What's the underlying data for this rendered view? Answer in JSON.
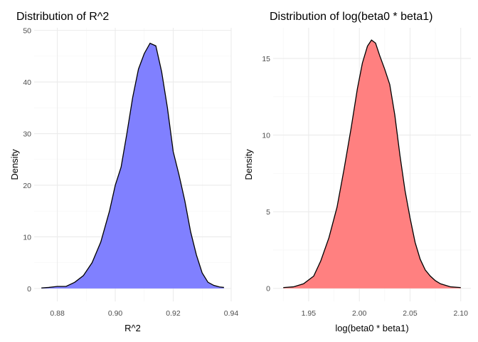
{
  "chart_data": [
    {
      "type": "area",
      "title": "Distribution of R^2",
      "xlabel": "R^2",
      "ylabel": "Density",
      "fill_color": "#8080ff",
      "line_color": "#000000",
      "grid": true,
      "xlim": [
        0.872,
        0.94
      ],
      "ylim": [
        -2.5,
        50.5
      ],
      "x_ticks": [
        0.88,
        0.9,
        0.92,
        0.94
      ],
      "x_tick_labels": [
        "0.88",
        "0.90",
        "0.92",
        "0.94"
      ],
      "y_ticks": [
        0,
        10,
        20,
        30,
        40,
        50
      ],
      "y_tick_labels": [
        "0",
        "10",
        "20",
        "30",
        "40",
        "50"
      ],
      "x": [
        0.8745,
        0.877,
        0.88,
        0.883,
        0.886,
        0.889,
        0.892,
        0.895,
        0.898,
        0.9,
        0.902,
        0.904,
        0.906,
        0.908,
        0.91,
        0.912,
        0.914,
        0.916,
        0.918,
        0.92,
        0.922,
        0.924,
        0.926,
        0.928,
        0.93,
        0.932,
        0.934,
        0.936,
        0.9375
      ],
      "y": [
        0.1,
        0.2,
        0.4,
        0.4,
        1.2,
        2.5,
        5.0,
        9.0,
        15.0,
        20.0,
        23.5,
        30.0,
        37.0,
        42.5,
        45.5,
        47.5,
        47.0,
        42.0,
        35.0,
        26.5,
        22.0,
        17.0,
        11.0,
        6.5,
        3.0,
        1.2,
        0.6,
        0.3,
        0.2
      ]
    },
    {
      "type": "area",
      "title": "Distribution of log(beta0 * beta1)",
      "xlabel": "log(beta0 * beta1)",
      "ylabel": "Density",
      "fill_color": "#ff8080",
      "line_color": "#000000",
      "grid": true,
      "xlim": [
        1.915,
        2.11
      ],
      "ylim": [
        -0.85,
        17.0
      ],
      "x_ticks": [
        1.95,
        2.0,
        2.05,
        2.1
      ],
      "x_tick_labels": [
        "1.95",
        "2.00",
        "2.05",
        "2.10"
      ],
      "y_ticks": [
        0,
        5,
        10,
        15
      ],
      "y_tick_labels": [
        "0",
        "5",
        "10",
        "15"
      ],
      "x": [
        1.925,
        1.935,
        1.945,
        1.955,
        1.962,
        1.97,
        1.978,
        1.985,
        1.992,
        1.998,
        2.003,
        2.008,
        2.012,
        2.016,
        2.02,
        2.025,
        2.03,
        2.035,
        2.04,
        2.045,
        2.05,
        2.055,
        2.06,
        2.065,
        2.07,
        2.075,
        2.08,
        2.09,
        2.1
      ],
      "y": [
        0.05,
        0.1,
        0.3,
        0.8,
        1.8,
        3.3,
        5.3,
        7.8,
        10.5,
        13.0,
        14.7,
        15.8,
        16.2,
        16.0,
        15.2,
        14.3,
        13.3,
        11.3,
        8.7,
        6.4,
        4.6,
        3.0,
        1.9,
        1.2,
        0.8,
        0.5,
        0.3,
        0.1,
        0.05
      ]
    }
  ]
}
